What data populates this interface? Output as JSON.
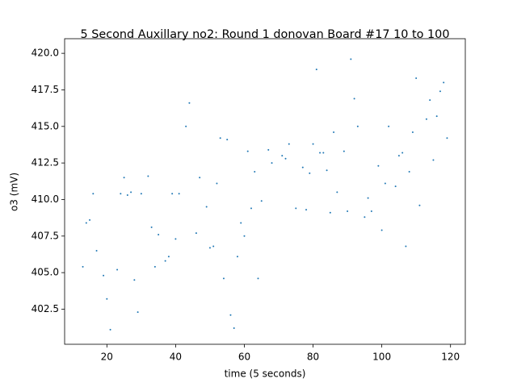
{
  "chart_data": {
    "type": "scatter",
    "title": "5 Second Auxillary no2: Round 1 donovan Board #17 10 to 100",
    "x_label": "time (5 seconds)",
    "y_label": "o3 (mV)",
    "color": "#1f77b4",
    "xlim": [
      7.7,
      124.3
    ],
    "ylim": [
      400.1,
      421.0
    ],
    "xticks": [
      20,
      40,
      60,
      80,
      100,
      120
    ],
    "yticks": [
      402.5,
      {
        "value": 405,
        "label": "405.0"
      },
      407.5,
      {
        "value": 410,
        "label": "410.0"
      },
      412.5,
      {
        "value": 415,
        "label": "415.0"
      },
      417.5,
      {
        "value": 420,
        "label": "420.0"
      }
    ],
    "x": [
      13,
      14,
      15,
      16,
      17,
      19,
      20,
      21,
      23,
      24,
      25,
      26,
      27,
      28,
      29,
      30,
      32,
      33,
      34,
      35,
      37,
      38,
      39,
      40,
      41,
      43,
      44,
      46,
      47,
      49,
      50,
      51,
      52,
      53,
      54,
      55,
      56,
      57,
      58,
      59,
      60,
      61,
      62,
      63,
      64,
      65,
      67,
      68,
      71,
      72,
      73,
      75,
      77,
      78,
      79,
      80,
      81,
      82,
      83,
      84,
      85,
      86,
      87,
      89,
      90,
      91,
      92,
      93,
      95,
      96,
      97,
      99,
      100,
      101,
      102,
      104,
      105,
      106,
      107,
      108,
      109,
      110,
      111,
      113,
      114,
      115,
      116,
      117,
      118,
      119
    ],
    "y": [
      405.4,
      408.4,
      408.6,
      410.4,
      406.5,
      404.8,
      403.2,
      401.1,
      405.2,
      410.4,
      411.5,
      410.3,
      410.5,
      404.5,
      402.3,
      410.4,
      411.6,
      408.1,
      405.4,
      407.6,
      405.8,
      406.1,
      410.4,
      407.3,
      410.4,
      415.0,
      416.6,
      407.7,
      411.5,
      409.5,
      406.7,
      406.8,
      411.1,
      414.2,
      404.6,
      414.1,
      402.1,
      401.2,
      406.1,
      408.4,
      407.5,
      413.3,
      409.4,
      411.9,
      404.6,
      409.9,
      413.4,
      412.5,
      413.0,
      412.8,
      413.8,
      409.4,
      412.2,
      409.3,
      411.8,
      413.8,
      418.9,
      413.2,
      413.2,
      412.0,
      409.1,
      414.6,
      410.5,
      413.3,
      409.2,
      419.6,
      416.9,
      415.0,
      408.8,
      410.1,
      409.2,
      412.3,
      407.9,
      411.1,
      415.0,
      410.9,
      413.0,
      413.2,
      406.8,
      411.9,
      414.6,
      418.3,
      409.6,
      415.5,
      416.8,
      412.7,
      415.7,
      417.4,
      418.0,
      414.2
    ]
  }
}
